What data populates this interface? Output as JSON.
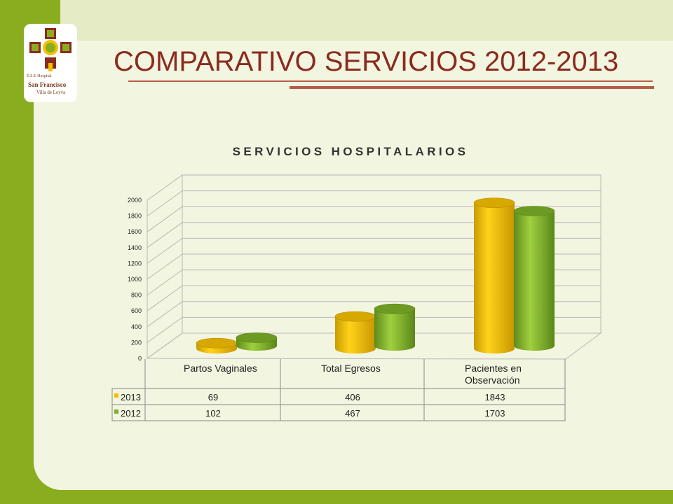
{
  "slide": {
    "title": "COMPARATIVO SERVICIOS 2012-2013",
    "logo": {
      "line1": "E.S.E Hospital",
      "line2": "San Francisco",
      "line3": "Villa de Leyva"
    }
  },
  "chart_data": {
    "type": "bar",
    "title": "SERVICIOS HOSPITALARIOS",
    "categories": [
      "Partos Vaginales",
      "Total Egresos",
      "Pacientes en Observación"
    ],
    "series": [
      {
        "name": "2013",
        "values": [
          69,
          406,
          1843
        ],
        "color": "#f2c200"
      },
      {
        "name": "2012",
        "values": [
          102,
          467,
          1703
        ],
        "color": "#7fae2a"
      }
    ],
    "ylim": [
      0,
      2000
    ],
    "yticks": [
      0,
      200,
      400,
      600,
      800,
      1000,
      1200,
      1400,
      1600,
      1800,
      2000
    ],
    "grid": true,
    "legend": "data-table"
  },
  "colors": {
    "green_frame": "#8aad1f",
    "panel": "#f2f5df",
    "title": "#8b2b1f"
  }
}
